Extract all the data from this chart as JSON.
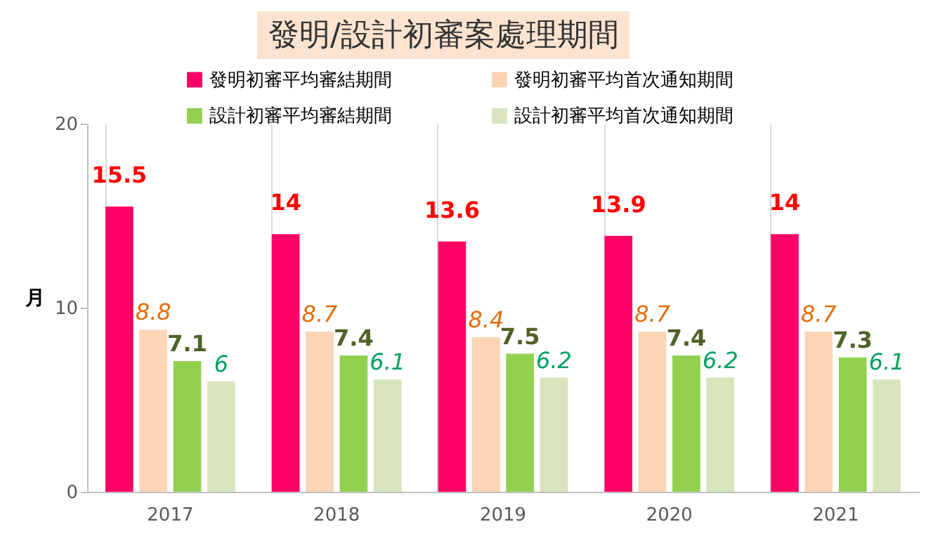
{
  "chart_data": {
    "type": "bar",
    "title": "發明/設計初審案處理期間",
    "ylabel": "月",
    "categories": [
      "2017",
      "2018",
      "2019",
      "2020",
      "2021"
    ],
    "series": [
      {
        "name": "發明初審平均審結期間",
        "color": "#ff0066",
        "values": [
          15.5,
          14,
          13.6,
          13.9,
          14
        ]
      },
      {
        "name": "發明初審平均首次通知期間",
        "color": "#fcd5b5",
        "values": [
          8.8,
          8.7,
          8.4,
          8.7,
          8.7
        ]
      },
      {
        "name": "設計初審平均審結期間",
        "color": "#92d050",
        "values": [
          7.1,
          7.4,
          7.5,
          7.4,
          7.3
        ]
      },
      {
        "name": "設計初審平均首次通知期間",
        "color": "#d8e4bc",
        "values": [
          6,
          6.1,
          6.2,
          6.2,
          6.1
        ]
      }
    ],
    "ylim": [
      0,
      20
    ],
    "yticks": [
      0,
      10,
      20
    ],
    "grid": "x",
    "legend": "top",
    "data_labels": true
  }
}
